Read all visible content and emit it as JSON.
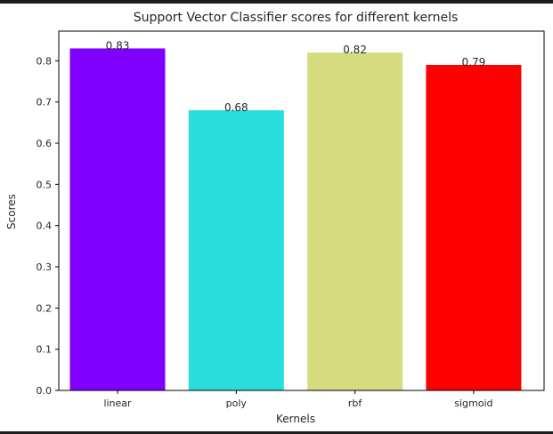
{
  "chart_data": {
    "type": "bar",
    "title": "Support Vector Classifier scores for different kernels",
    "xlabel": "Kernels",
    "ylabel": "Scores",
    "categories": [
      "linear",
      "poly",
      "rbf",
      "sigmoid"
    ],
    "values": [
      0.83,
      0.68,
      0.82,
      0.79
    ],
    "value_labels": [
      "0.83",
      "0.68",
      "0.82",
      "0.79"
    ],
    "colors": [
      "#8000ff",
      "#2adddd",
      "#d4dc7f",
      "#ff0000"
    ],
    "ylim": [
      0,
      0.872
    ],
    "yticks": [
      0.0,
      0.1,
      0.2,
      0.3,
      0.4,
      0.5,
      0.6,
      0.7,
      0.8
    ],
    "ytick_labels": [
      "0.0",
      "0.1",
      "0.2",
      "0.3",
      "0.4",
      "0.5",
      "0.6",
      "0.7",
      "0.8"
    ],
    "grid": false
  }
}
